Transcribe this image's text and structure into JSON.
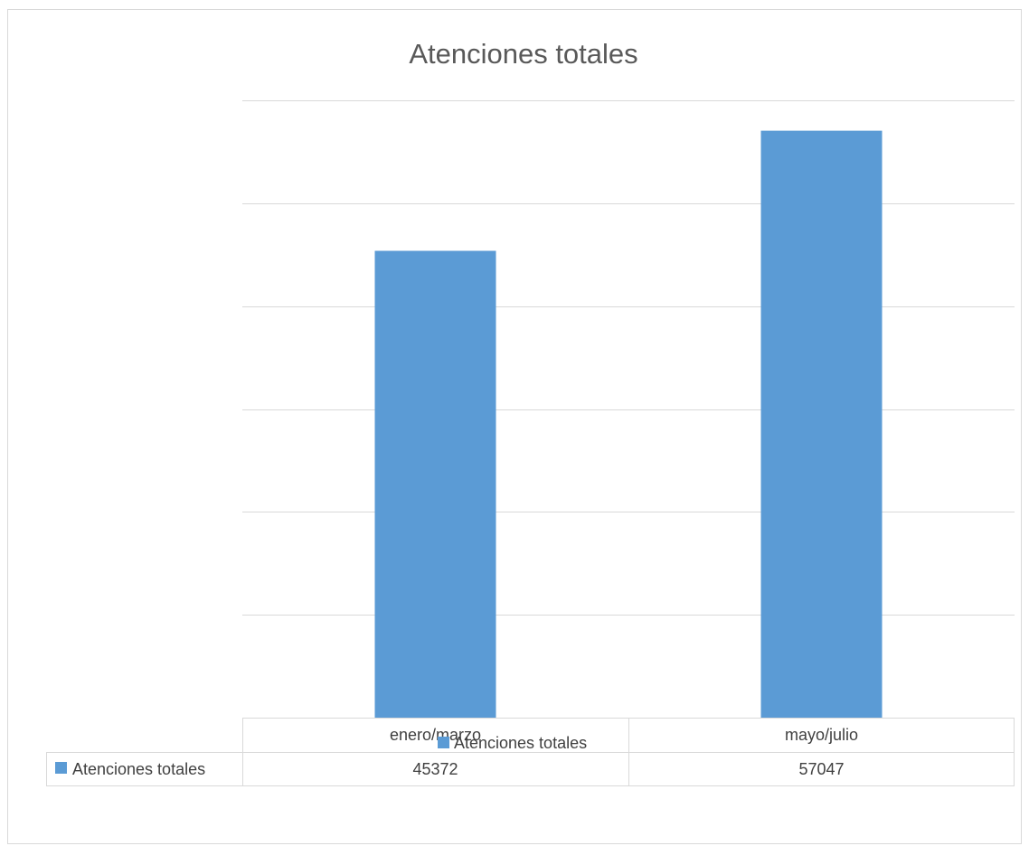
{
  "chart_data": {
    "type": "bar",
    "title": "Atenciones totales",
    "categories": [
      "enero/marzo",
      "mayo/julio"
    ],
    "series": [
      {
        "name": "Atenciones totales",
        "values": [
          45372,
          57047
        ],
        "color": "#5b9bd5"
      }
    ],
    "ylim": [
      0,
      60000
    ],
    "y_gridline_step": 10000,
    "y_tick_labels_visible": false,
    "grid": true,
    "data_table": true,
    "legend": "bottom",
    "colors": {
      "gridline": "#d9d9d9",
      "table_border": "#d9d9d9",
      "title": "#595959",
      "text": "#404040"
    }
  }
}
